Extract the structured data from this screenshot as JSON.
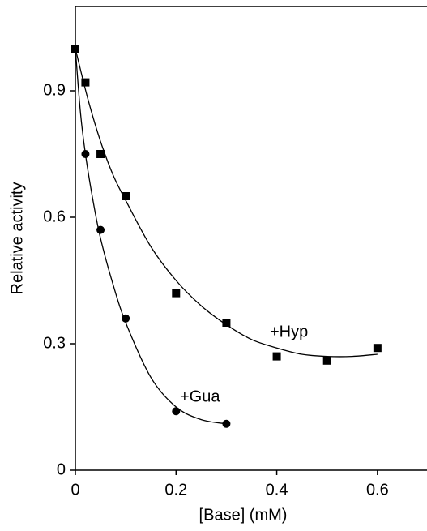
{
  "chart_data": {
    "type": "scatter",
    "x_label": "[Base] (mM)",
    "y_label": "Relative activity",
    "xlim": [
      0,
      0.7
    ],
    "ylim": [
      0,
      1.1
    ],
    "xticks": [
      0,
      0.2,
      0.4,
      0.6
    ],
    "yticks": [
      0,
      0.3,
      0.6,
      0.9
    ],
    "color": "#000000",
    "series": [
      {
        "name": "+Hyp",
        "marker": "square",
        "x": [
          0,
          0.02,
          0.05,
          0.1,
          0.2,
          0.3,
          0.4,
          0.5,
          0.6
        ],
        "values": [
          1.0,
          0.92,
          0.75,
          0.65,
          0.42,
          0.35,
          0.27,
          0.26,
          0.29
        ],
        "fit_x": [
          0,
          0.025,
          0.05,
          0.075,
          0.1,
          0.15,
          0.2,
          0.25,
          0.3,
          0.35,
          0.4,
          0.45,
          0.5,
          0.55,
          0.6
        ],
        "fit_values": [
          1.0,
          0.88,
          0.78,
          0.7,
          0.64,
          0.53,
          0.45,
          0.39,
          0.345,
          0.31,
          0.29,
          0.275,
          0.27,
          0.27,
          0.275
        ]
      },
      {
        "name": "+Gua",
        "marker": "circle",
        "x": [
          0,
          0.02,
          0.05,
          0.1,
          0.2,
          0.3
        ],
        "values": [
          1.0,
          0.75,
          0.57,
          0.36,
          0.14,
          0.11
        ],
        "fit_x": [
          0,
          0.01,
          0.02,
          0.035,
          0.05,
          0.075,
          0.1,
          0.15,
          0.2,
          0.25,
          0.3
        ],
        "fit_values": [
          1.0,
          0.85,
          0.75,
          0.64,
          0.55,
          0.44,
          0.35,
          0.22,
          0.15,
          0.12,
          0.11
        ]
      }
    ]
  }
}
